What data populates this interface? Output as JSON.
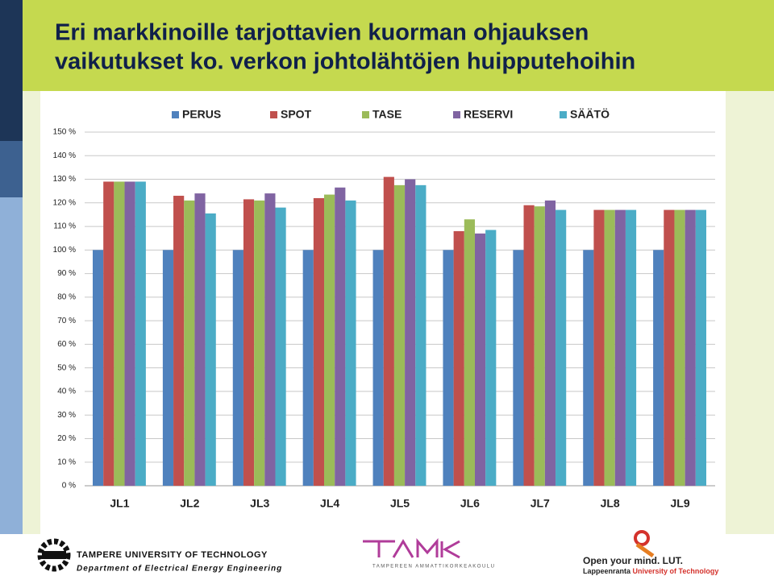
{
  "chart_data": {
    "type": "bar",
    "title": [
      "Eri markkinoille tarjottavien kuorman ohjauksen",
      "vaikutukset ko. verkon johtolähtöjen huipputehoihin"
    ],
    "categories": [
      "JL1",
      "JL2",
      "JL3",
      "JL4",
      "JL5",
      "JL6",
      "JL7",
      "JL8",
      "JL9"
    ],
    "series": [
      {
        "name": "PERUS",
        "color": "#4f81bd",
        "values": [
          100,
          100,
          100,
          100,
          100,
          100,
          100,
          100,
          100
        ]
      },
      {
        "name": "SPOT",
        "color": "#c0504d",
        "values": [
          129,
          123,
          121.5,
          122,
          131,
          108,
          119,
          117,
          117
        ]
      },
      {
        "name": "TASE",
        "color": "#9bbb59",
        "values": [
          129,
          121,
          121,
          123.5,
          127.5,
          113,
          118.5,
          117,
          117
        ]
      },
      {
        "name": "RESERVI",
        "color": "#8064a2",
        "values": [
          129,
          124,
          124,
          126.5,
          130,
          107,
          121,
          117,
          117
        ]
      },
      {
        "name": "SÄÄTÖ",
        "color": "#4bacc6",
        "values": [
          129,
          115.5,
          118,
          121,
          127.5,
          108.5,
          117,
          117,
          117
        ]
      }
    ],
    "ylim": [
      0,
      150
    ],
    "yticks": [
      {
        "value": 0,
        "label": "0 %"
      },
      {
        "value": 10,
        "label": "10 %"
      },
      {
        "value": 20,
        "label": "20 %"
      },
      {
        "value": 30,
        "label": "30 %"
      },
      {
        "value": 40,
        "label": "40 %"
      },
      {
        "value": 50,
        "label": "50 %"
      },
      {
        "value": 60,
        "label": "60 %"
      },
      {
        "value": 70,
        "label": "70 %"
      },
      {
        "value": 80,
        "label": "80 %"
      },
      {
        "value": 90,
        "label": "90 %"
      },
      {
        "value": 100,
        "label": "100 %"
      },
      {
        "value": 110,
        "label": "110 %"
      },
      {
        "value": 120,
        "label": "120 %"
      },
      {
        "value": 130,
        "label": "130 %"
      },
      {
        "value": 140,
        "label": "140 %"
      },
      {
        "value": 150,
        "label": "150 %"
      }
    ],
    "grid": true,
    "legend": "top"
  },
  "footer": {
    "tut": "TAMPERE UNIVERSITY OF TECHNOLOGY",
    "department": "Department of Electrical Energy Engineering",
    "tamk": "TAMPEREEN AMMATTIKORKEAKOULU",
    "lut_slogan": "Open your mind. LUT.",
    "lut_name_1": "Lappeenranta",
    "lut_name_2": "University of Technology"
  }
}
